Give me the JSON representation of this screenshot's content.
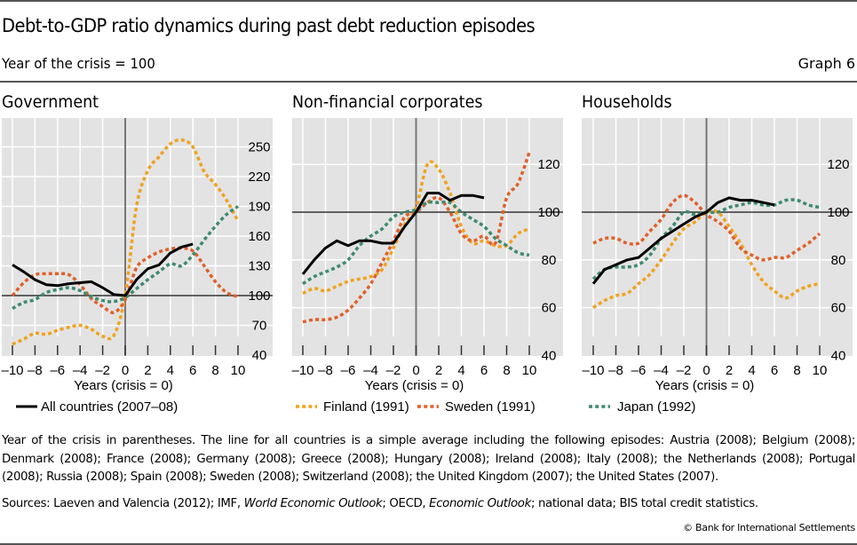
{
  "header": {
    "title": "Debt-to-GDP ratio dynamics during past debt reduction episodes",
    "subtitle": "Year of the crisis = 100",
    "graph_number": "Graph 6"
  },
  "colors": {
    "all_countries": "#000000",
    "finland": "#f0a21e",
    "sweden": "#e0602a",
    "japan": "#3e8a6e",
    "plot_bg": "#e3e3e3",
    "grid": "#ffffff",
    "axis": "#777777"
  },
  "legend": [
    {
      "key": "all",
      "label": "All countries (2007–08)",
      "style": "solid"
    },
    {
      "key": "finland",
      "label": "Finland (1991)",
      "style": "dotted"
    },
    {
      "key": "sweden",
      "label": "Sweden (1991)",
      "style": "dotted"
    },
    {
      "key": "japan",
      "label": "Japan (1992)",
      "style": "dotted"
    }
  ],
  "chart_data": [
    {
      "type": "line",
      "title": "Government",
      "xlabel": "Years (crisis = 0)",
      "ylabel": "",
      "xlim": [
        -10,
        10
      ],
      "ylim": [
        40,
        250
      ],
      "xticks": [
        -10,
        -8,
        -6,
        -4,
        -2,
        0,
        2,
        4,
        6,
        8,
        10
      ],
      "xtick_labels": [
        "–10",
        "–8",
        "–6",
        "–4",
        "–2",
        "0",
        "2",
        "4",
        "6",
        "8",
        "10"
      ],
      "yticks": [
        40,
        70,
        100,
        130,
        160,
        190,
        220,
        250
      ],
      "ytick_labels": [
        "40",
        "70",
        "100",
        "130",
        "160",
        "190",
        "220",
        "250"
      ],
      "y_axis_side": "right",
      "grid": true,
      "baseline": 100,
      "series": [
        {
          "name": "All countries (2007–08)",
          "key": "all",
          "x": [
            -10,
            -9,
            -8,
            -7,
            -6,
            -5,
            -4,
            -3,
            -2,
            -1,
            0,
            1,
            2,
            3,
            4,
            5,
            6
          ],
          "values": [
            131,
            124,
            116,
            111,
            110,
            112,
            113,
            114,
            108,
            101,
            100,
            116,
            127,
            131,
            143,
            149,
            152
          ]
        },
        {
          "name": "Finland (1991)",
          "key": "finland",
          "x": [
            -10,
            -9,
            -8,
            -7,
            -6,
            -5,
            -4,
            -3,
            -2,
            -1,
            0,
            1,
            2,
            3,
            4,
            5,
            6,
            7,
            8,
            9,
            10
          ],
          "values": [
            51,
            56,
            62,
            61,
            65,
            68,
            70,
            66,
            59,
            60,
            100,
            190,
            226,
            240,
            253,
            257,
            250,
            225,
            212,
            196,
            175
          ]
        },
        {
          "name": "Sweden (1991)",
          "key": "sweden",
          "x": [
            -10,
            -9,
            -8,
            -7,
            -6,
            -5,
            -4,
            -3,
            -2,
            -1,
            0,
            1,
            2,
            3,
            4,
            5,
            6,
            7,
            8,
            9,
            10
          ],
          "values": [
            100,
            113,
            121,
            122,
            122,
            121,
            111,
            97,
            89,
            83,
            96,
            128,
            138,
            144,
            147,
            148,
            145,
            130,
            114,
            103,
            99
          ]
        },
        {
          "name": "Japan (1992)",
          "key": "japan",
          "x": [
            -10,
            -9,
            -8,
            -7,
            -6,
            -5,
            -4,
            -3,
            -2,
            -1,
            0,
            1,
            2,
            3,
            4,
            5,
            6,
            7,
            8,
            9,
            10
          ],
          "values": [
            87,
            93,
            96,
            103,
            106,
            108,
            105,
            99,
            95,
            94,
            98,
            107,
            116,
            124,
            132,
            130,
            141,
            156,
            170,
            182,
            190
          ]
        }
      ]
    },
    {
      "type": "line",
      "title": "Non-financial corporates",
      "xlabel": "Years (crisis = 0)",
      "ylabel": "",
      "xlim": [
        -10,
        10
      ],
      "ylim": [
        40,
        120
      ],
      "xticks": [
        -10,
        -8,
        -6,
        -4,
        -2,
        0,
        2,
        4,
        6,
        8,
        10
      ],
      "xtick_labels": [
        "–10",
        "–8",
        "–6",
        "–4",
        "–2",
        "0",
        "2",
        "4",
        "6",
        "8",
        "10"
      ],
      "yticks": [
        40,
        60,
        80,
        100,
        120
      ],
      "ytick_labels": [
        "40",
        "60",
        "80",
        "100",
        "120"
      ],
      "y_axis_side": "right",
      "grid": true,
      "baseline": 100,
      "series": [
        {
          "name": "All countries (2007–08)",
          "key": "all",
          "x": [
            -10,
            -9,
            -8,
            -7,
            -6,
            -5,
            -4,
            -3,
            -2,
            -1,
            0,
            1,
            2,
            3,
            4,
            5,
            6
          ],
          "values": [
            74,
            80,
            85,
            88,
            86,
            88,
            88,
            87,
            87,
            94,
            100,
            108,
            108,
            105,
            107,
            107,
            106
          ]
        },
        {
          "name": "Finland (1991)",
          "key": "finland",
          "x": [
            -10,
            -9,
            -8,
            -7,
            -6,
            -5,
            -4,
            -3,
            -2,
            -1,
            0,
            1,
            2,
            3,
            4,
            5,
            6,
            7,
            8,
            9,
            10
          ],
          "values": [
            66,
            68,
            67,
            69,
            71,
            72,
            73,
            76,
            85,
            95,
            102,
            120,
            118,
            108,
            94,
            87,
            88,
            86,
            86,
            91,
            93
          ]
        },
        {
          "name": "Sweden (1991)",
          "key": "sweden",
          "x": [
            -10,
            -9,
            -8,
            -7,
            -6,
            -5,
            -4,
            -3,
            -2,
            -1,
            0,
            1,
            2,
            3,
            4,
            5,
            6,
            7,
            8,
            9,
            10
          ],
          "values": [
            54,
            55,
            55,
            56,
            59,
            64,
            70,
            79,
            88,
            98,
            100,
            104,
            106,
            100,
            91,
            88,
            90,
            87,
            106,
            112,
            125
          ]
        },
        {
          "name": "Japan (1992)",
          "key": "japan",
          "x": [
            -10,
            -9,
            -8,
            -7,
            -6,
            -5,
            -4,
            -3,
            -2,
            -1,
            0,
            1,
            2,
            3,
            4,
            5,
            6,
            7,
            8,
            9,
            10
          ],
          "values": [
            70,
            73,
            75,
            77,
            80,
            86,
            90,
            93,
            98,
            100,
            101,
            104,
            104,
            104,
            100,
            97,
            94,
            89,
            86,
            83,
            82
          ]
        }
      ]
    },
    {
      "type": "line",
      "title": "Households",
      "xlabel": "Years (crisis = 0)",
      "ylabel": "",
      "xlim": [
        -10,
        10
      ],
      "ylim": [
        40,
        120
      ],
      "xticks": [
        -10,
        -8,
        -6,
        -4,
        -2,
        0,
        2,
        4,
        6,
        8,
        10
      ],
      "xtick_labels": [
        "–10",
        "–8",
        "–6",
        "–4",
        "–2",
        "0",
        "2",
        "4",
        "6",
        "8",
        "10"
      ],
      "yticks": [
        40,
        60,
        80,
        100,
        120
      ],
      "ytick_labels": [
        "40",
        "60",
        "80",
        "100",
        "120"
      ],
      "y_axis_side": "right",
      "grid": true,
      "baseline": 100,
      "series": [
        {
          "name": "All countries (2007–08)",
          "key": "all",
          "x": [
            -10,
            -9,
            -8,
            -7,
            -6,
            -5,
            -4,
            -3,
            -2,
            -1,
            0,
            1,
            2,
            3,
            4,
            5,
            6
          ],
          "values": [
            70,
            76,
            78,
            80,
            81,
            85,
            89,
            92,
            95,
            98,
            100,
            104,
            106,
            105,
            105,
            104,
            103
          ]
        },
        {
          "name": "Finland (1991)",
          "key": "finland",
          "x": [
            -10,
            -9,
            -8,
            -7,
            -6,
            -5,
            -4,
            -3,
            -2,
            -1,
            0,
            1,
            2,
            3,
            4,
            5,
            6,
            7,
            8,
            9,
            10
          ],
          "values": [
            60,
            63,
            65,
            66,
            70,
            74,
            80,
            87,
            93,
            96,
            100,
            100,
            94,
            87,
            78,
            71,
            67,
            64,
            67,
            69,
            70
          ]
        },
        {
          "name": "Sweden (1991)",
          "key": "sweden",
          "x": [
            -10,
            -9,
            -8,
            -7,
            -6,
            -5,
            -4,
            -3,
            -2,
            -1,
            0,
            1,
            2,
            3,
            4,
            5,
            6,
            7,
            8,
            9,
            10
          ],
          "values": [
            87,
            89,
            89,
            87,
            87,
            92,
            97,
            104,
            107,
            104,
            99,
            96,
            92,
            85,
            82,
            80,
            81,
            81,
            84,
            87,
            91
          ]
        },
        {
          "name": "Japan (1992)",
          "key": "japan",
          "x": [
            -10,
            -9,
            -8,
            -7,
            -6,
            -5,
            -4,
            -3,
            -2,
            -1,
            0,
            1,
            2,
            3,
            4,
            5,
            6,
            7,
            8,
            9,
            10
          ],
          "values": [
            72,
            76,
            77,
            77,
            78,
            82,
            89,
            94,
            100,
            99,
            100,
            100,
            102,
            103,
            104,
            103,
            103,
            105,
            105,
            103,
            102
          ]
        }
      ]
    }
  ],
  "footnote": "Year of the crisis in parentheses. The line for all countries is a simple average including the following episodes: Austria (2008); Belgium (2008); Denmark (2008); France (2008); Germany (2008); Greece (2008); Hungary (2008); Ireland (2008); Italy (2008); the Netherlands (2008); Portugal (2008); Russia (2008); Spain (2008); Sweden (2008); Switzerland (2008); the United Kingdom (2007); the United States (2007).",
  "sources": {
    "prefix": "Sources: Laeven and Valencia (2012); IMF, ",
    "weo": "World Economic Outlook",
    "mid": "; OECD, ",
    "eo": "Economic Outlook",
    "suffix": "; national data; BIS total credit statistics."
  },
  "copyright": "© Bank for International Settlements"
}
